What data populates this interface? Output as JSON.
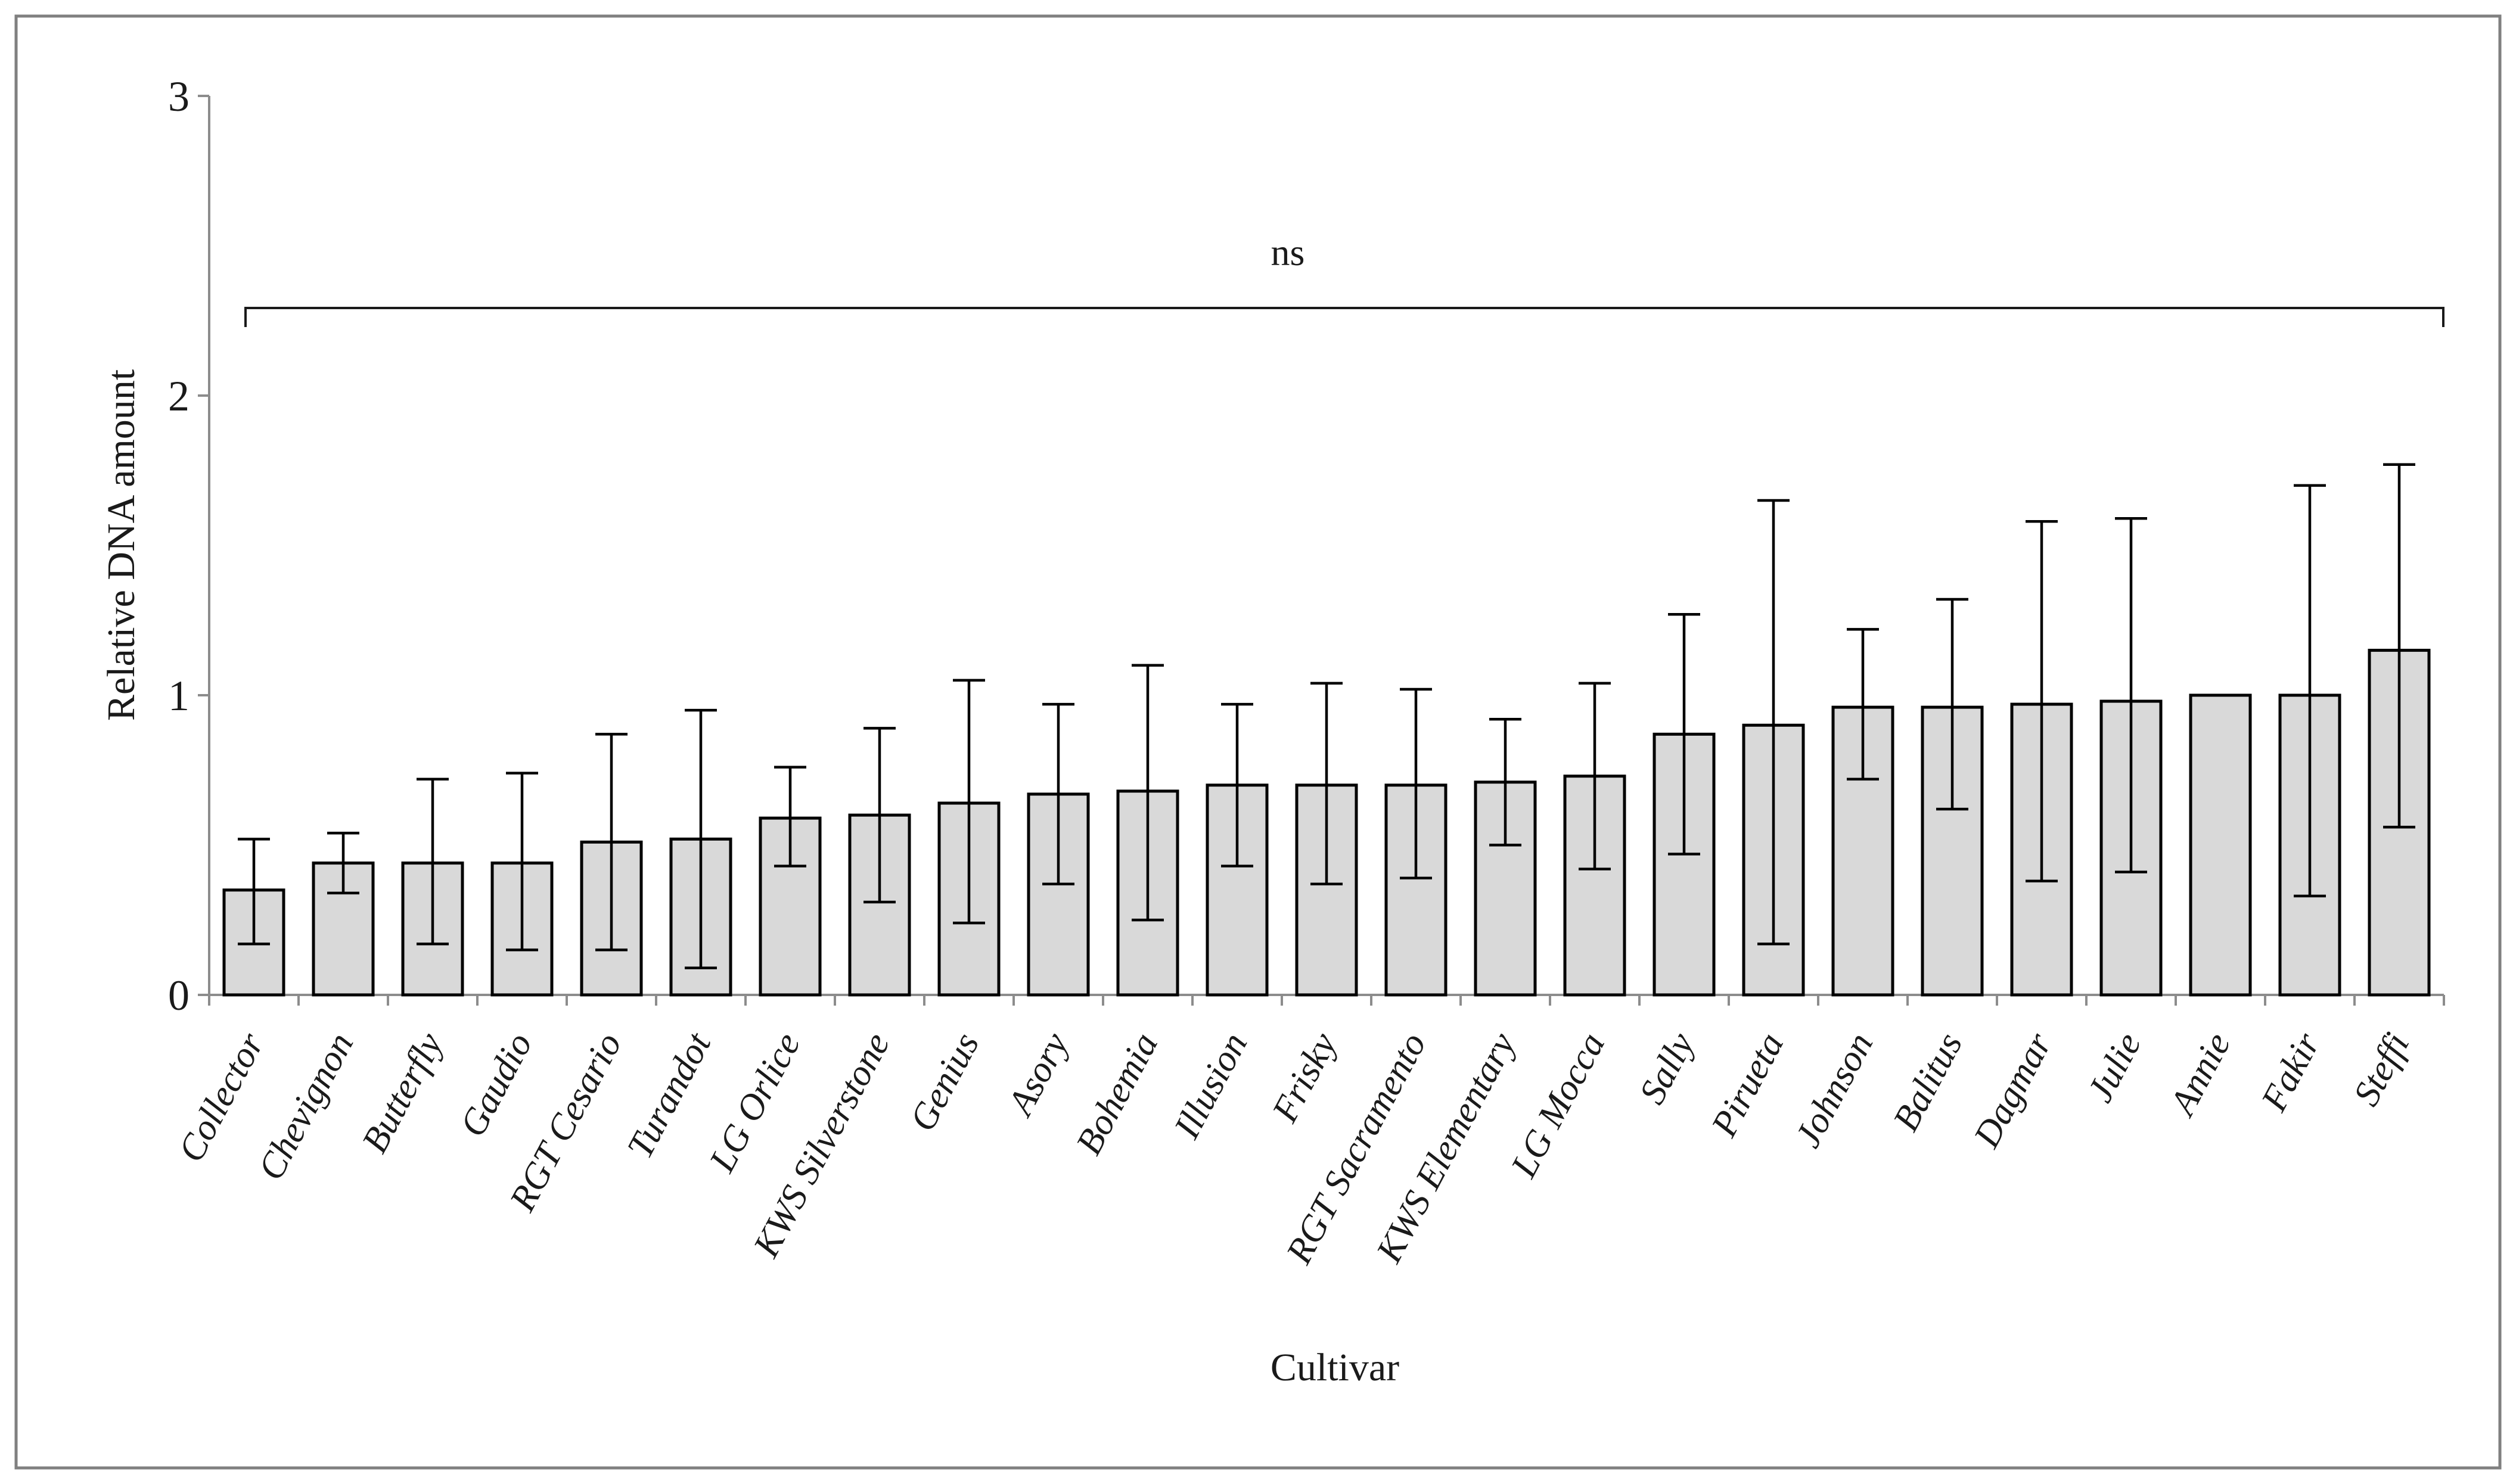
{
  "chart_data": {
    "type": "bar",
    "title": "",
    "xlabel": "Cultivar",
    "ylabel": "Relative DNA amount",
    "ylim": [
      0,
      3
    ],
    "yticks": [
      0,
      1,
      2,
      3
    ],
    "grid": false,
    "legend": "none",
    "annotation": {
      "label": "ns",
      "meaning": "not significant",
      "bracket_y_value": 2.29,
      "bracket_spans": "Collector through Steffi"
    },
    "categories": [
      "Collector",
      "Chevignon",
      "Butterfly",
      "Gaudio",
      "RGT Cesario",
      "Turandot",
      "LG Orlice",
      "KWS Silverstone",
      "Genius",
      "Asory",
      "Bohemia",
      "Illusion",
      "Frisky",
      "RGT Sacramento",
      "KWS Elementary",
      "LG Mocca",
      "Sally",
      "Pirueta",
      "Johnson",
      "Balitus",
      "Dagmar",
      "Julie",
      "Annie",
      "Fakir",
      "Steffi"
    ],
    "series": [
      {
        "name": "Relative DNA amount",
        "values": [
          0.35,
          0.44,
          0.44,
          0.44,
          0.51,
          0.52,
          0.59,
          0.6,
          0.64,
          0.67,
          0.68,
          0.7,
          0.7,
          0.7,
          0.71,
          0.73,
          0.87,
          0.9,
          0.96,
          0.96,
          0.97,
          0.98,
          1.0,
          1.0,
          1.15
        ],
        "whisker_upper": [
          0.52,
          0.54,
          0.72,
          0.74,
          0.87,
          0.95,
          0.76,
          0.89,
          1.05,
          0.97,
          1.1,
          0.97,
          1.04,
          1.02,
          0.92,
          1.04,
          1.27,
          1.65,
          1.22,
          1.32,
          1.58,
          1.59,
          null,
          1.7,
          1.77
        ],
        "whisker_lower": [
          0.17,
          0.34,
          0.17,
          0.15,
          0.15,
          0.09,
          0.43,
          0.31,
          0.24,
          0.37,
          0.25,
          0.43,
          0.37,
          0.39,
          0.5,
          0.42,
          0.47,
          0.17,
          0.72,
          0.62,
          0.38,
          0.41,
          null,
          0.33,
          0.56
        ]
      }
    ]
  },
  "colors": {
    "bar_fill": "#d9d9d9",
    "bar_stroke": "#000000",
    "error_bar": "#000000",
    "axis": "#8c8c8c",
    "frame_border": "#808080",
    "background": "#ffffff",
    "text": "#1a1a1a"
  }
}
